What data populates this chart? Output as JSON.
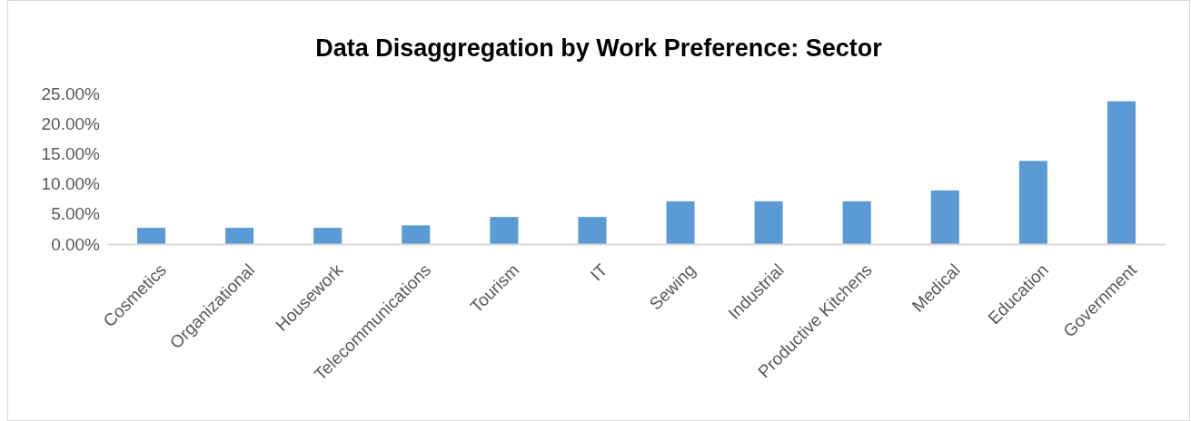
{
  "chart_data": {
    "type": "bar",
    "title": "Data Disaggregation by Work Preference: Sector",
    "categories": [
      "Cosmetics",
      "Organizational",
      "Housework",
      "Telecommunications",
      "Tourism",
      "IT",
      "Sewing",
      "Industrial",
      "Productive Kitchens",
      "Medical",
      "Education",
      "Government"
    ],
    "values": [
      2.7,
      2.7,
      2.7,
      3.1,
      4.5,
      4.5,
      7.1,
      7.1,
      7.1,
      8.9,
      13.8,
      23.7
    ],
    "color": "#5b9bd5",
    "ylim": [
      0,
      25
    ],
    "yticks": [
      {
        "value": 0,
        "label": "0.00%"
      },
      {
        "value": 5,
        "label": "5.00%"
      },
      {
        "value": 10,
        "label": "10.00%"
      },
      {
        "value": 15,
        "label": "15.00%"
      },
      {
        "value": 20,
        "label": "20.00%"
      },
      {
        "value": 25,
        "label": "25.00%"
      }
    ],
    "grid": false
  }
}
